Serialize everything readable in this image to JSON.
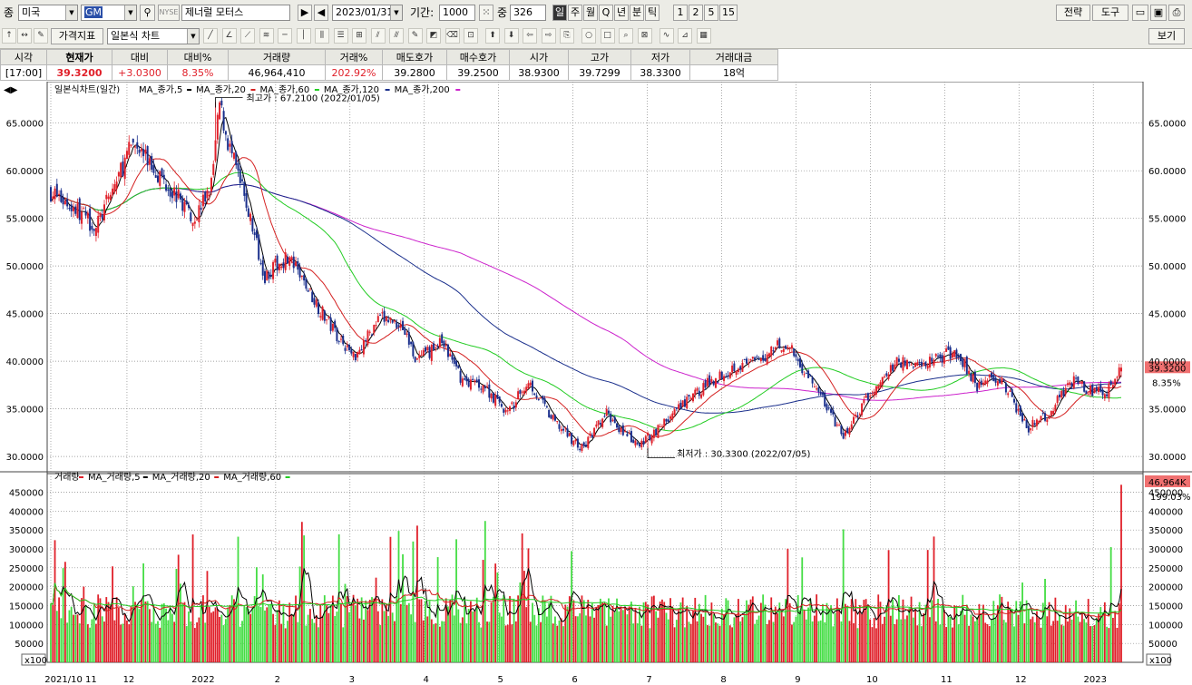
{
  "toolbar1": {
    "label_type": "종",
    "market": "미국",
    "code": "GM",
    "exchange_badge": "NYSE",
    "stock_name": "제너럴 모터스",
    "date": "2023/01/31",
    "period_label": "기간:",
    "period_value": "1000",
    "count_label": "중",
    "count_value": "326",
    "intervals": [
      "일",
      "주",
      "월",
      "Q",
      "년",
      "분",
      "틱"
    ],
    "minutes": [
      "1",
      "2",
      "5",
      "15"
    ],
    "strategy": "전략",
    "tools": "도구"
  },
  "toolbar2": {
    "indicator": "가격지표",
    "chart_type": "일본식 차트",
    "view": "보기"
  },
  "quote": {
    "headers": [
      "시각",
      "현재가",
      "대비",
      "대비%",
      "거래량",
      "거래%",
      "매도호가",
      "매수호가",
      "시가",
      "고가",
      "저가",
      "거래대금"
    ],
    "values": [
      "[17:00]",
      "39.3200",
      "+3.0300",
      "8.35%",
      "46,964,410",
      "202.92%",
      "39.2800",
      "39.2500",
      "38.9300",
      "39.7299",
      "38.3300",
      "18억"
    ]
  },
  "price_panel": {
    "legend": [
      "일본식차트(일간)",
      "MA_종가,5",
      "MA_종가,20",
      "MA_종가,60",
      "MA_종가,120",
      "MA_종가,200"
    ],
    "high_annotation": "최고가 : 67.2100 (2022/01/05)",
    "low_annotation": "최저가 : 30.3300 (2022/07/05)",
    "last_price_tag": "39.3200",
    "last_change_tag": "8.35%"
  },
  "volume_panel": {
    "legend": [
      "거래량",
      "MA_거래량,5",
      "MA_거래량,20",
      "MA_거래량,60"
    ],
    "last_volume_tag": "46,964K",
    "last_ratio_tag": "199.03%",
    "scale_badge": "x100"
  },
  "colors": {
    "up": "#e0202a",
    "down": "#1a2f8c",
    "vol_up": "#e0202a",
    "vol_down": "#44dd44",
    "ma5": "#000000",
    "ma20": "#d42020",
    "ma60": "#22cc22",
    "ma120": "#1a2f8c",
    "ma200": "#cc22cc",
    "grid": "#888888",
    "accent_tag": "#f07070"
  },
  "chart_data": {
    "type": "candlestick",
    "series_names": [
      "MA_종가,5",
      "MA_종가,20",
      "MA_종가,60",
      "MA_종가,120",
      "MA_종가,200"
    ],
    "price_ticks": [
      "30.0000",
      "35.0000",
      "40.0000",
      "45.0000",
      "50.0000",
      "55.0000",
      "60.0000",
      "65.0000"
    ],
    "price_range": [
      28.2,
      68.4
    ],
    "volume_ticks": [
      "50000",
      "100000",
      "150000",
      "200000",
      "250000",
      "300000",
      "350000",
      "400000",
      "450000"
    ],
    "volume_range": [
      0,
      480000
    ],
    "x_labels": [
      "2021/10 11",
      "12",
      "2022",
      "2",
      "3",
      "4",
      "5",
      "6",
      "7",
      "8",
      "9",
      "10",
      "11",
      "12",
      "2023"
    ],
    "price_keypoints": [
      [
        0,
        57.8
      ],
      [
        15,
        55.5
      ],
      [
        22,
        54.0
      ],
      [
        40,
        63.0
      ],
      [
        55,
        59.0
      ],
      [
        70,
        55.0
      ],
      [
        78,
        58.5
      ],
      [
        82,
        67.0
      ],
      [
        86,
        63.0
      ],
      [
        95,
        56.5
      ],
      [
        104,
        49.0
      ],
      [
        115,
        51.0
      ],
      [
        125,
        47.5
      ],
      [
        135,
        44.0
      ],
      [
        147,
        40.5
      ],
      [
        160,
        44.5
      ],
      [
        170,
        44.0
      ],
      [
        178,
        40.0
      ],
      [
        190,
        42.0
      ],
      [
        200,
        38.0
      ],
      [
        210,
        37.5
      ],
      [
        222,
        34.5
      ],
      [
        232,
        38.0
      ],
      [
        243,
        34.0
      ],
      [
        258,
        30.8
      ],
      [
        270,
        34.5
      ],
      [
        285,
        31.0
      ],
      [
        300,
        34.0
      ],
      [
        318,
        37.5
      ],
      [
        332,
        39.5
      ],
      [
        345,
        40.0
      ],
      [
        353,
        42.0
      ],
      [
        360,
        41.0
      ],
      [
        375,
        36.0
      ],
      [
        385,
        32.0
      ],
      [
        398,
        36.5
      ],
      [
        412,
        40.0
      ],
      [
        420,
        39.5
      ],
      [
        432,
        40.5
      ],
      [
        440,
        41.0
      ],
      [
        450,
        37.5
      ],
      [
        460,
        38.5
      ],
      [
        475,
        33.0
      ],
      [
        485,
        34.5
      ],
      [
        495,
        38.0
      ],
      [
        505,
        37.0
      ],
      [
        512,
        36.5
      ],
      [
        518,
        38.5
      ],
      [
        520,
        39.32
      ]
    ],
    "high": {
      "value": 67.21,
      "date": "2022/01/05"
    },
    "low": {
      "value": 30.33,
      "date": "2022/07/05"
    },
    "last": {
      "close": 39.32,
      "open": 38.93,
      "high": 39.7299,
      "low": 38.33,
      "volume": 46964410
    }
  }
}
